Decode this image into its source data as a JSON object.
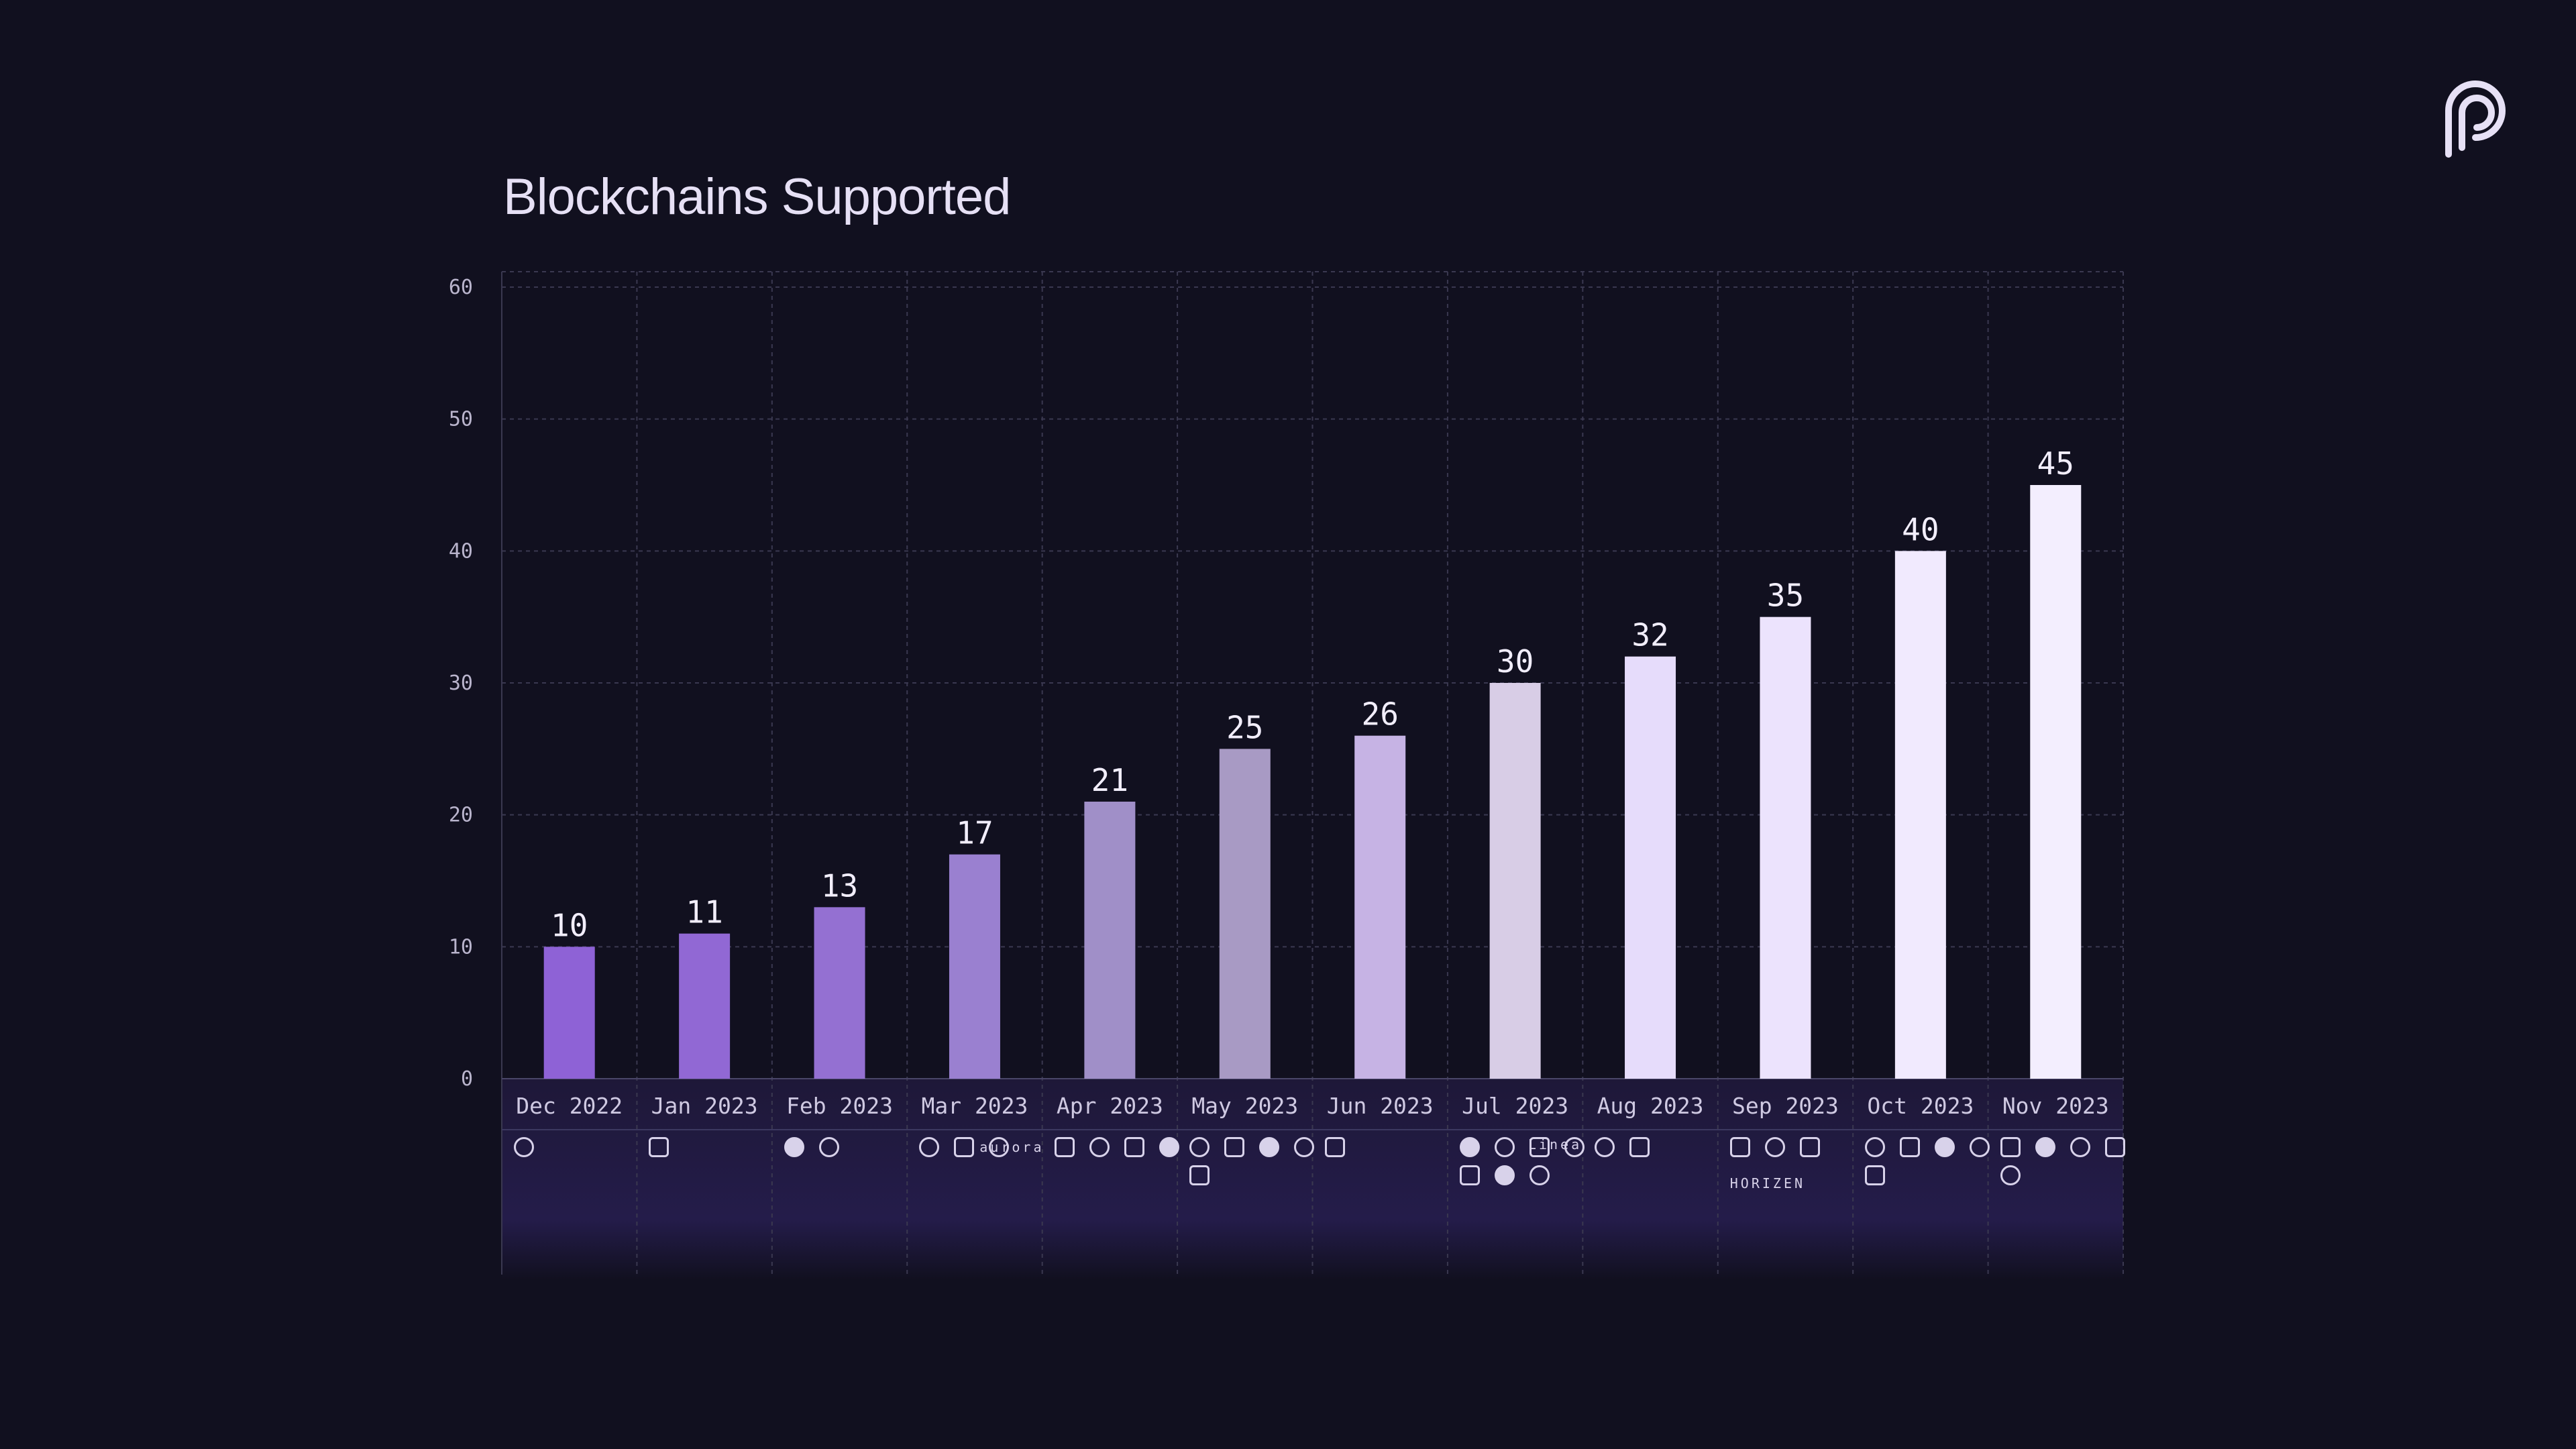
{
  "title": "Blockchains Supported",
  "chart_data": {
    "type": "bar",
    "title": "Blockchains Supported",
    "categories": [
      "Dec 2022",
      "Jan 2023",
      "Feb 2023",
      "Mar 2023",
      "Apr 2023",
      "May 2023",
      "Jun 2023",
      "Jul 2023",
      "Aug 2023",
      "Sep 2023",
      "Oct 2023",
      "Nov 2023"
    ],
    "values": [
      10,
      11,
      13,
      17,
      21,
      25,
      26,
      30,
      32,
      35,
      40,
      45
    ],
    "ylim": [
      0,
      60
    ],
    "yticks": [
      0,
      10,
      20,
      30,
      40,
      50,
      60
    ],
    "grid": true,
    "data_labels": true,
    "bar_colors": [
      "#8e62d6",
      "#9168d4",
      "#9470d2",
      "#9a80d0",
      "#a08fc8",
      "#a89ac4",
      "#c6b3e4",
      "#d8cde6",
      "#e6dcfb",
      "#ece3fd",
      "#f1eafe",
      "#f3eefe"
    ]
  },
  "chain_icons": {
    "Dec 2022": [
      "chain-icon"
    ],
    "Jan 2023": [
      "chain-icon"
    ],
    "Feb 2023": [
      "chain-icon",
      "chain-icon"
    ],
    "Mar 2023": [
      "chain-icon",
      "chain-icon",
      "chain-icon"
    ],
    "Apr 2023": [
      "chain-icon",
      "chain-icon",
      "chain-icon",
      "chain-icon"
    ],
    "May 2023": [
      "chain-icon",
      "chain-icon",
      "chain-icon",
      "chain-icon",
      "chain-icon"
    ],
    "Jun 2023": [
      "chain-icon"
    ],
    "Jul 2023": [
      "chain-icon",
      "chain-icon",
      "chain-icon",
      "chain-icon",
      "chain-icon",
      "chain-icon",
      "chain-icon"
    ],
    "Aug 2023": [
      "chain-icon",
      "chain-icon"
    ],
    "Sep 2023": [
      "chain-icon",
      "chain-icon",
      "chain-icon"
    ],
    "Oct 2023": [
      "chain-icon",
      "chain-icon",
      "chain-icon",
      "chain-icon",
      "chain-icon"
    ],
    "Nov 2023": [
      "chain-icon",
      "chain-icon",
      "chain-icon",
      "chain-icon",
      "chain-icon"
    ]
  },
  "chain_wordmarks": {
    "mar_aurora": "aurora",
    "jul_linea": "Linea",
    "sep_horizen": "HORIZEN"
  },
  "colors": {
    "background": "#11101f",
    "grid": "#3a3850",
    "axis_text": "#b9b4cc",
    "label_text": "#f2eefc"
  }
}
